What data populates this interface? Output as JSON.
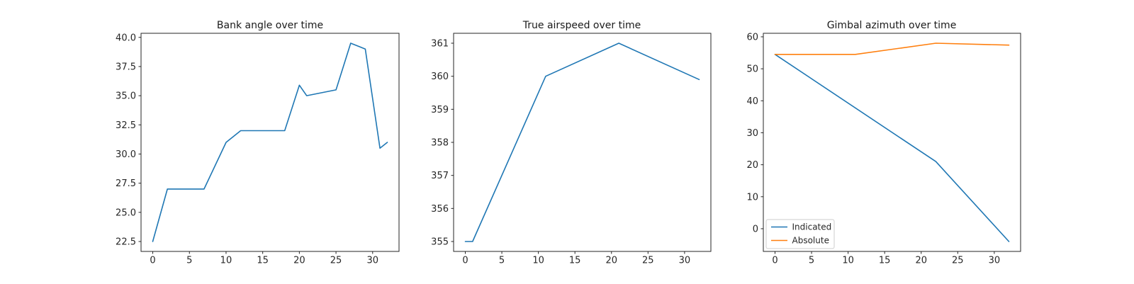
{
  "figure": {
    "background": "#ffffff",
    "text_color": "#262626",
    "axis_color": "#262626",
    "legend_border_color": "#cccccc",
    "palette": {
      "blue": "#1f77b4",
      "orange": "#ff7f0e"
    }
  },
  "chart_data": [
    {
      "type": "line",
      "title": "Bank angle over time",
      "xlabel": "",
      "ylabel": "",
      "grid": false,
      "xlim": [
        -1.6,
        33.6
      ],
      "ylim": [
        21.65,
        40.35
      ],
      "xtick_values": [
        0,
        5,
        10,
        15,
        20,
        25,
        30
      ],
      "xtick_labels": [
        "0",
        "5",
        "10",
        "15",
        "20",
        "25",
        "30"
      ],
      "ytick_values": [
        22.5,
        25.0,
        27.5,
        30.0,
        32.5,
        35.0,
        37.5,
        40.0
      ],
      "ytick_labels": [
        "22.5",
        "25.0",
        "27.5",
        "30.0",
        "32.5",
        "35.0",
        "37.5",
        "40.0"
      ],
      "legend": null,
      "series": [
        {
          "name": "Bank angle",
          "color": "#1f77b4",
          "x": [
            0,
            2,
            7,
            10,
            12,
            18,
            20,
            21,
            25,
            27,
            29,
            31,
            32
          ],
          "y": [
            22.5,
            27,
            27,
            31,
            32,
            32,
            35.9,
            35,
            35.5,
            39.5,
            39,
            30.5,
            31
          ]
        }
      ]
    },
    {
      "type": "line",
      "title": "True airspeed over time",
      "xlabel": "",
      "ylabel": "",
      "grid": false,
      "xlim": [
        -1.6,
        33.6
      ],
      "ylim": [
        354.7,
        361.3
      ],
      "xtick_values": [
        0,
        5,
        10,
        15,
        20,
        25,
        30
      ],
      "xtick_labels": [
        "0",
        "5",
        "10",
        "15",
        "20",
        "25",
        "30"
      ],
      "ytick_values": [
        355,
        356,
        357,
        358,
        359,
        360,
        361
      ],
      "ytick_labels": [
        "355",
        "356",
        "357",
        "358",
        "359",
        "360",
        "361"
      ],
      "legend": null,
      "series": [
        {
          "name": "True airspeed",
          "color": "#1f77b4",
          "x": [
            0,
            1,
            11,
            21,
            32
          ],
          "y": [
            355,
            355,
            360,
            361,
            359.9
          ]
        }
      ]
    },
    {
      "type": "line",
      "title": "Gimbal azimuth over time",
      "xlabel": "",
      "ylabel": "",
      "grid": false,
      "xlim": [
        -1.6,
        33.6
      ],
      "ylim": [
        -7.1,
        61.1
      ],
      "xtick_values": [
        0,
        5,
        10,
        15,
        20,
        25,
        30
      ],
      "xtick_labels": [
        "0",
        "5",
        "10",
        "15",
        "20",
        "25",
        "30"
      ],
      "ytick_values": [
        0,
        10,
        20,
        30,
        40,
        50,
        60
      ],
      "ytick_labels": [
        "0",
        "10",
        "20",
        "30",
        "40",
        "50",
        "60"
      ],
      "legend": {
        "position": "lower left",
        "items": [
          "Indicated",
          "Absolute"
        ]
      },
      "series": [
        {
          "name": "Indicated",
          "color": "#1f77b4",
          "x": [
            0,
            22,
            32
          ],
          "y": [
            54.5,
            21,
            -4
          ]
        },
        {
          "name": "Absolute",
          "color": "#ff7f0e",
          "x": [
            0,
            11,
            22,
            32
          ],
          "y": [
            54.5,
            54.5,
            58,
            57.4
          ]
        }
      ]
    }
  ]
}
